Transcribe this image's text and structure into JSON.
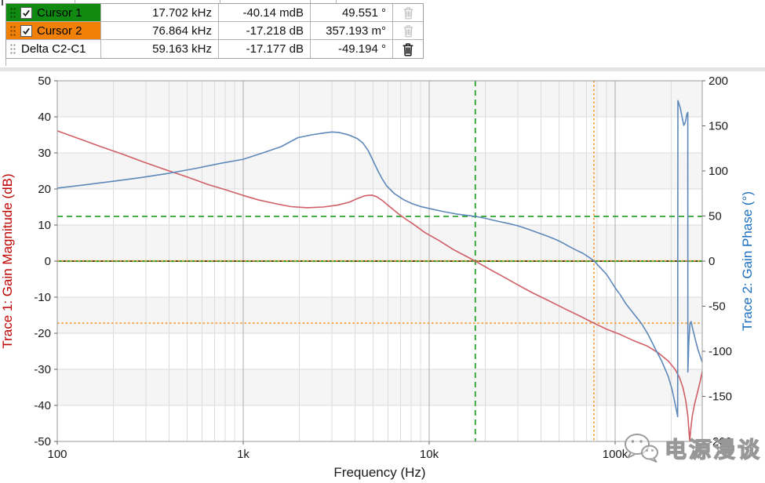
{
  "cursor_table": {
    "rows": [
      {
        "name": "Cursor 1",
        "freq": "17.702 kHz",
        "mag": "-40.14 mdB",
        "phase": "49.551 °",
        "row_color": "#118a11",
        "checked": true,
        "trash_enabled": false
      },
      {
        "name": "Cursor 2",
        "freq": "76.864 kHz",
        "mag": "-17.218 dB",
        "phase": "357.193 m°",
        "row_color": "#f08008",
        "checked": true,
        "trash_enabled": false
      },
      {
        "name": "Delta C2-C1",
        "freq": "59.163 kHz",
        "mag": "-17.177 dB",
        "phase": "-49.194 °",
        "row_color": "#ffffff",
        "checked": null,
        "trash_enabled": true
      }
    ]
  },
  "chart_data": {
    "type": "line",
    "x_axis": {
      "label": "Frequency (Hz)",
      "scale": "log",
      "range": [
        100,
        294000
      ],
      "ticks": [
        {
          "value": 100,
          "label": "100"
        },
        {
          "value": 1000,
          "label": "1k"
        },
        {
          "value": 10000,
          "label": "10k"
        },
        {
          "value": 100000,
          "label": "100k"
        }
      ]
    },
    "left_axis": {
      "label": "Trace 1: Gain Magnitude (dB)",
      "color": "#c00000",
      "range": [
        -50,
        50
      ],
      "tick_step": 10
    },
    "right_axis": {
      "label": "Trace 2: Gain Phase (°)",
      "color": "#1a6ec0",
      "range": [
        -200,
        200
      ],
      "tick_step": 50
    },
    "grid": {
      "band_color": "#f5f5f5",
      "minor_color": "#dcdcdc",
      "major_color": "#ababab",
      "zero_line_color": "#46461e",
      "border_color": "#999999"
    },
    "series": [
      {
        "name": "Trace 1: Gain Magnitude",
        "axis": "left",
        "color": "#d05f66",
        "points": [
          [
            100,
            36.1
          ],
          [
            130,
            34.0
          ],
          [
            170,
            31.8
          ],
          [
            220,
            29.8
          ],
          [
            290,
            27.5
          ],
          [
            380,
            25.4
          ],
          [
            500,
            23.3
          ],
          [
            650,
            21.2
          ],
          [
            800,
            19.8
          ],
          [
            1000,
            18.2
          ],
          [
            1200,
            17.0
          ],
          [
            1500,
            15.9
          ],
          [
            1800,
            15.1
          ],
          [
            2200,
            14.8
          ],
          [
            2700,
            15.0
          ],
          [
            3200,
            15.5
          ],
          [
            3700,
            16.3
          ],
          [
            4100,
            17.3
          ],
          [
            4500,
            18.1
          ],
          [
            4900,
            18.3
          ],
          [
            5200,
            17.9
          ],
          [
            5600,
            16.8
          ],
          [
            6100,
            15.2
          ],
          [
            6800,
            13.2
          ],
          [
            7600,
            11.4
          ],
          [
            8150,
            10.4
          ],
          [
            9500,
            7.9
          ],
          [
            11300,
            5.7
          ],
          [
            13500,
            3.2
          ],
          [
            16000,
            1.2
          ],
          [
            17702,
            0.0
          ],
          [
            21000,
            -2.2
          ],
          [
            25000,
            -4.3
          ],
          [
            30000,
            -6.6
          ],
          [
            36000,
            -8.8
          ],
          [
            44000,
            -11.0
          ],
          [
            54000,
            -13.3
          ],
          [
            65000,
            -15.3
          ],
          [
            76864,
            -17.2
          ],
          [
            90000,
            -18.9
          ],
          [
            107000,
            -20.4
          ],
          [
            125000,
            -22.0
          ],
          [
            148000,
            -23.5
          ],
          [
            170000,
            -25.4
          ],
          [
            193000,
            -27.7
          ],
          [
            210000,
            -30.0
          ],
          [
            222000,
            -32.3
          ],
          [
            232000,
            -35.2
          ],
          [
            240000,
            -38.8
          ],
          [
            246000,
            -43.0
          ],
          [
            250000,
            -47.8
          ],
          [
            252000,
            -49.8
          ],
          [
            255000,
            -46.5
          ],
          [
            260000,
            -42.8
          ],
          [
            268000,
            -39.4
          ],
          [
            278000,
            -36.2
          ],
          [
            286000,
            -33.5
          ],
          [
            294000,
            -30.6
          ]
        ]
      },
      {
        "name": "Trace 2: Gain Phase",
        "axis": "right",
        "color": "#5d88ba",
        "points": [
          [
            100,
            81.0
          ],
          [
            140,
            84.5
          ],
          [
            200,
            88.5
          ],
          [
            280,
            92.5
          ],
          [
            400,
            97.5
          ],
          [
            560,
            103.0
          ],
          [
            760,
            108.5
          ],
          [
            1000,
            113.0
          ],
          [
            1250,
            119.5
          ],
          [
            1600,
            127.0
          ],
          [
            1970,
            137.0
          ],
          [
            2330,
            140.0
          ],
          [
            2700,
            142.0
          ],
          [
            3000,
            143.2
          ],
          [
            3300,
            142.5
          ],
          [
            3700,
            139.8
          ],
          [
            4100,
            136.0
          ],
          [
            4400,
            131.0
          ],
          [
            4700,
            122.5
          ],
          [
            5000,
            111.0
          ],
          [
            5300,
            100.0
          ],
          [
            5600,
            91.0
          ],
          [
            5900,
            83.5
          ],
          [
            6500,
            74.8
          ],
          [
            7300,
            68.0
          ],
          [
            8150,
            63.5
          ],
          [
            9100,
            60.3
          ],
          [
            10200,
            58.0
          ],
          [
            12000,
            54.8
          ],
          [
            14000,
            52.3
          ],
          [
            16000,
            50.7
          ],
          [
            17702,
            49.55
          ],
          [
            20000,
            47.5
          ],
          [
            23300,
            44.3
          ],
          [
            27000,
            41.5
          ],
          [
            30000,
            39.1
          ],
          [
            34000,
            35.5
          ],
          [
            37600,
            32.2
          ],
          [
            43000,
            27.8
          ],
          [
            48600,
            23.5
          ],
          [
            53000,
            19.5
          ],
          [
            57200,
            15.7
          ],
          [
            62000,
            12.0
          ],
          [
            67000,
            8.7
          ],
          [
            72000,
            4.5
          ],
          [
            76864,
            0.36
          ],
          [
            83000,
            -7.0
          ],
          [
            90000,
            -14.8
          ],
          [
            100000,
            -29.6
          ],
          [
            107000,
            -38.0
          ],
          [
            114000,
            -47.0
          ],
          [
            126000,
            -58.5
          ],
          [
            139000,
            -69.6
          ],
          [
            151000,
            -82.0
          ],
          [
            163000,
            -95.7
          ],
          [
            178000,
            -111.0
          ],
          [
            193000,
            -128.0
          ],
          [
            202000,
            -142.0
          ],
          [
            209000,
            -156.0
          ],
          [
            214000,
            -166.0
          ],
          [
            217000,
            -172.5
          ],
          [
            217600,
            178.0
          ],
          [
            224000,
            170.0
          ],
          [
            230000,
            158.0
          ],
          [
            234000,
            150.5
          ],
          [
            238000,
            153.5
          ],
          [
            243000,
            163.0
          ],
          [
            245800,
            165.0
          ],
          [
            246200,
            -123.0
          ],
          [
            249000,
            -90.0
          ],
          [
            252500,
            -70.0
          ],
          [
            256000,
            -67.0
          ],
          [
            262000,
            -76.0
          ],
          [
            270000,
            -87.0
          ],
          [
            278000,
            -97.0
          ],
          [
            286000,
            -105.0
          ],
          [
            294000,
            -112.0
          ]
        ]
      }
    ],
    "cursors": [
      {
        "name": "Cursor 1",
        "color": "#2da32d",
        "style": "dashed",
        "freq": 17702,
        "mag_db": -0.04014,
        "phase_deg": 49.551
      },
      {
        "name": "Cursor 2",
        "color": "#f6a142",
        "style": "dotted",
        "freq": 76864,
        "mag_db": -17.218,
        "phase_deg": 0.357193
      }
    ]
  },
  "watermark": {
    "text": "电源漫谈",
    "icon": "wechat-chat-bubbles"
  }
}
